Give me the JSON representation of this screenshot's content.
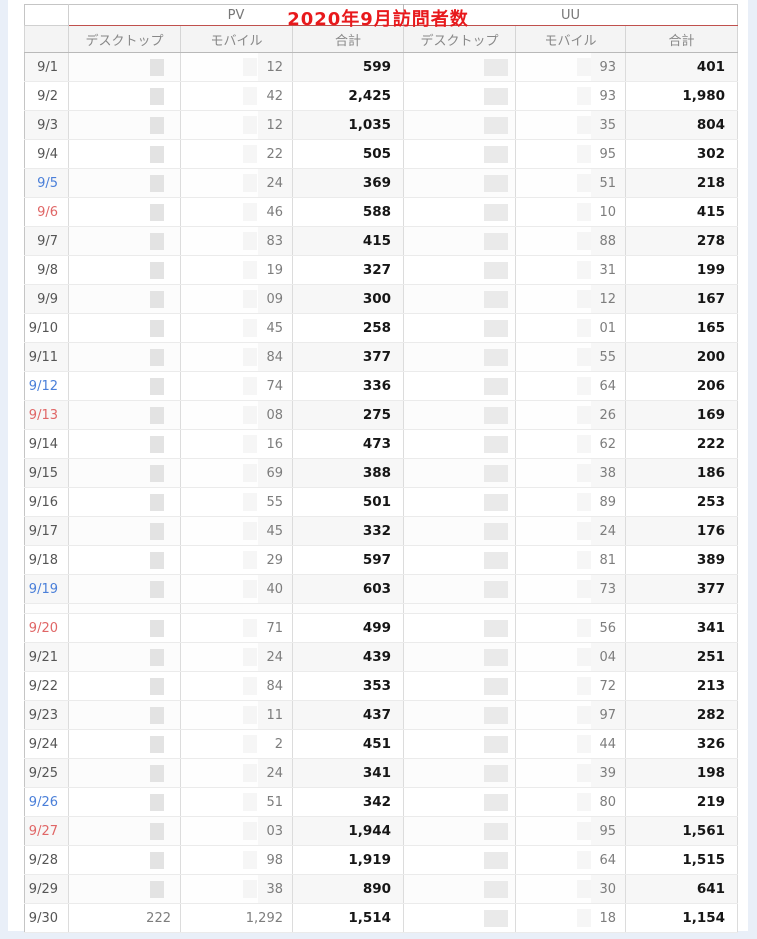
{
  "title": "2020年9月訪問者数",
  "colors": {
    "title_red": "#e8191c",
    "underline_red": "#c0504d",
    "saturday_blue": "#4a7fd9",
    "sunday_red": "#e06666",
    "page_edge_blue": "#e9eff8",
    "total_text": "#161616",
    "partial_text": "#7d7d7d"
  },
  "table": {
    "group_headers": [
      {
        "id": "pv",
        "label": "PV"
      },
      {
        "id": "uu",
        "label": "UU"
      }
    ],
    "column_headers": [
      "デスクトップ",
      "モバイル",
      "合計",
      "デスクトップ",
      "モバイル",
      "合計"
    ],
    "rows": [
      {
        "date": "9/1",
        "day": "weekday",
        "pv": {
          "desktop": "",
          "mobile": "12",
          "total": "599",
          "redacted": true
        },
        "uu": {
          "desktop": "",
          "mobile": "93",
          "total": "401",
          "redacted": true
        },
        "spacer_after": false
      },
      {
        "date": "9/2",
        "day": "weekday",
        "pv": {
          "desktop": "",
          "mobile": "42",
          "total": "2,425",
          "redacted": true
        },
        "uu": {
          "desktop": "",
          "mobile": "93",
          "total": "1,980",
          "redacted": true
        },
        "spacer_after": false
      },
      {
        "date": "9/3",
        "day": "weekday",
        "pv": {
          "desktop": "",
          "mobile": "12",
          "total": "1,035",
          "redacted": true
        },
        "uu": {
          "desktop": "",
          "mobile": "35",
          "total": "804",
          "redacted": true
        },
        "spacer_after": false
      },
      {
        "date": "9/4",
        "day": "weekday",
        "pv": {
          "desktop": "",
          "mobile": "22",
          "total": "505",
          "redacted": true
        },
        "uu": {
          "desktop": "",
          "mobile": "95",
          "total": "302",
          "redacted": true
        },
        "spacer_after": false
      },
      {
        "date": "9/5",
        "day": "saturday",
        "pv": {
          "desktop": "",
          "mobile": "24",
          "total": "369",
          "redacted": true
        },
        "uu": {
          "desktop": "",
          "mobile": "51",
          "total": "218",
          "redacted": true
        },
        "spacer_after": false
      },
      {
        "date": "9/6",
        "day": "sunday",
        "pv": {
          "desktop": "",
          "mobile": "46",
          "total": "588",
          "redacted": true
        },
        "uu": {
          "desktop": "",
          "mobile": "10",
          "total": "415",
          "redacted": true
        },
        "spacer_after": false
      },
      {
        "date": "9/7",
        "day": "weekday",
        "pv": {
          "desktop": "",
          "mobile": "83",
          "total": "415",
          "redacted": true
        },
        "uu": {
          "desktop": "",
          "mobile": "88",
          "total": "278",
          "redacted": true
        },
        "spacer_after": false
      },
      {
        "date": "9/8",
        "day": "weekday",
        "pv": {
          "desktop": "",
          "mobile": "19",
          "total": "327",
          "redacted": true
        },
        "uu": {
          "desktop": "",
          "mobile": "31",
          "total": "199",
          "redacted": true
        },
        "spacer_after": false
      },
      {
        "date": "9/9",
        "day": "weekday",
        "pv": {
          "desktop": "",
          "mobile": "09",
          "total": "300",
          "redacted": true
        },
        "uu": {
          "desktop": "",
          "mobile": "12",
          "total": "167",
          "redacted": true
        },
        "spacer_after": false
      },
      {
        "date": "9/10",
        "day": "weekday",
        "pv": {
          "desktop": "",
          "mobile": "45",
          "total": "258",
          "redacted": true
        },
        "uu": {
          "desktop": "",
          "mobile": "01",
          "total": "165",
          "redacted": true
        },
        "spacer_after": false
      },
      {
        "date": "9/11",
        "day": "weekday",
        "pv": {
          "desktop": "",
          "mobile": "84",
          "total": "377",
          "redacted": true
        },
        "uu": {
          "desktop": "",
          "mobile": "55",
          "total": "200",
          "redacted": true
        },
        "spacer_after": false
      },
      {
        "date": "9/12",
        "day": "saturday",
        "pv": {
          "desktop": "",
          "mobile": "74",
          "total": "336",
          "redacted": true
        },
        "uu": {
          "desktop": "",
          "mobile": "64",
          "total": "206",
          "redacted": true
        },
        "spacer_after": false
      },
      {
        "date": "9/13",
        "day": "sunday",
        "pv": {
          "desktop": "",
          "mobile": "08",
          "total": "275",
          "redacted": true
        },
        "uu": {
          "desktop": "",
          "mobile": "26",
          "total": "169",
          "redacted": true
        },
        "spacer_after": false
      },
      {
        "date": "9/14",
        "day": "weekday",
        "pv": {
          "desktop": "",
          "mobile": "16",
          "total": "473",
          "redacted": true
        },
        "uu": {
          "desktop": "",
          "mobile": "62",
          "total": "222",
          "redacted": true
        },
        "spacer_after": false
      },
      {
        "date": "9/15",
        "day": "weekday",
        "pv": {
          "desktop": "",
          "mobile": "69",
          "total": "388",
          "redacted": true
        },
        "uu": {
          "desktop": "",
          "mobile": "38",
          "total": "186",
          "redacted": true
        },
        "spacer_after": false
      },
      {
        "date": "9/16",
        "day": "weekday",
        "pv": {
          "desktop": "",
          "mobile": "55",
          "total": "501",
          "redacted": true
        },
        "uu": {
          "desktop": "",
          "mobile": "89",
          "total": "253",
          "redacted": true
        },
        "spacer_after": false
      },
      {
        "date": "9/17",
        "day": "weekday",
        "pv": {
          "desktop": "",
          "mobile": "45",
          "total": "332",
          "redacted": true
        },
        "uu": {
          "desktop": "",
          "mobile": "24",
          "total": "176",
          "redacted": true
        },
        "spacer_after": false
      },
      {
        "date": "9/18",
        "day": "weekday",
        "pv": {
          "desktop": "",
          "mobile": "29",
          "total": "597",
          "redacted": true
        },
        "uu": {
          "desktop": "",
          "mobile": "81",
          "total": "389",
          "redacted": true
        },
        "spacer_after": false
      },
      {
        "date": "9/19",
        "day": "saturday",
        "pv": {
          "desktop": "",
          "mobile": "40",
          "total": "603",
          "redacted": true
        },
        "uu": {
          "desktop": "",
          "mobile": "73",
          "total": "377",
          "redacted": true
        },
        "spacer_after": true
      },
      {
        "date": "9/20",
        "day": "sunday",
        "pv": {
          "desktop": "",
          "mobile": "71",
          "total": "499",
          "redacted": true
        },
        "uu": {
          "desktop": "",
          "mobile": "56",
          "total": "341",
          "redacted": true
        },
        "spacer_after": false
      },
      {
        "date": "9/21",
        "day": "weekday",
        "pv": {
          "desktop": "",
          "mobile": "24",
          "total": "439",
          "redacted": true
        },
        "uu": {
          "desktop": "",
          "mobile": "04",
          "total": "251",
          "redacted": true
        },
        "spacer_after": false
      },
      {
        "date": "9/22",
        "day": "weekday",
        "pv": {
          "desktop": "",
          "mobile": "84",
          "total": "353",
          "redacted": true
        },
        "uu": {
          "desktop": "",
          "mobile": "72",
          "total": "213",
          "redacted": true
        },
        "spacer_after": false
      },
      {
        "date": "9/23",
        "day": "weekday",
        "pv": {
          "desktop": "",
          "mobile": "11",
          "total": "437",
          "redacted": true
        },
        "uu": {
          "desktop": "",
          "mobile": "97",
          "total": "282",
          "redacted": true
        },
        "spacer_after": false
      },
      {
        "date": "9/24",
        "day": "weekday",
        "pv": {
          "desktop": "",
          "mobile": "2",
          "total": "451",
          "redacted": true
        },
        "uu": {
          "desktop": "",
          "mobile": "44",
          "total": "326",
          "redacted": true
        },
        "spacer_after": false
      },
      {
        "date": "9/25",
        "day": "weekday",
        "pv": {
          "desktop": "",
          "mobile": "24",
          "total": "341",
          "redacted": true
        },
        "uu": {
          "desktop": "",
          "mobile": "39",
          "total": "198",
          "redacted": true
        },
        "spacer_after": false
      },
      {
        "date": "9/26",
        "day": "saturday",
        "pv": {
          "desktop": "",
          "mobile": "51",
          "total": "342",
          "redacted": true
        },
        "uu": {
          "desktop": "",
          "mobile": "80",
          "total": "219",
          "redacted": true
        },
        "spacer_after": false
      },
      {
        "date": "9/27",
        "day": "sunday",
        "pv": {
          "desktop": "",
          "mobile": "03",
          "total": "1,944",
          "redacted": true
        },
        "uu": {
          "desktop": "",
          "mobile": "95",
          "total": "1,561",
          "redacted": true
        },
        "spacer_after": false
      },
      {
        "date": "9/28",
        "day": "weekday",
        "pv": {
          "desktop": "",
          "mobile": "98",
          "total": "1,919",
          "redacted": true
        },
        "uu": {
          "desktop": "",
          "mobile": "64",
          "total": "1,515",
          "redacted": true
        },
        "spacer_after": false
      },
      {
        "date": "9/29",
        "day": "weekday",
        "pv": {
          "desktop": "",
          "mobile": "38",
          "total": "890",
          "redacted": true
        },
        "uu": {
          "desktop": "",
          "mobile": "30",
          "total": "641",
          "redacted": true
        },
        "spacer_after": false
      },
      {
        "date": "9/30",
        "day": "weekday",
        "pv": {
          "desktop": "222",
          "mobile": "1,292",
          "total": "1,514",
          "redacted": false
        },
        "uu": {
          "desktop": "",
          "mobile": "18",
          "total": "1,154",
          "redacted": true
        },
        "spacer_after": false
      }
    ]
  }
}
